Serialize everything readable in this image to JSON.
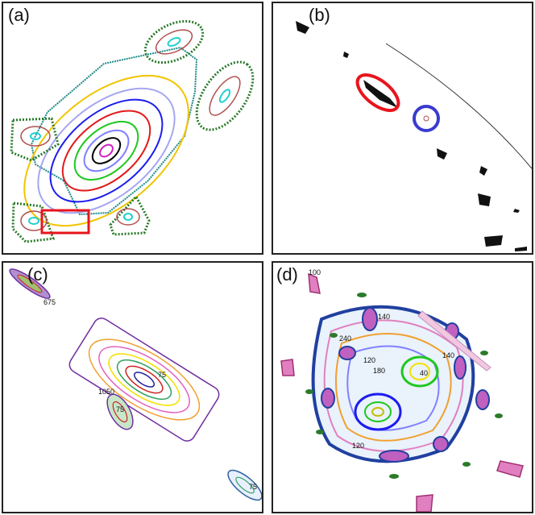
{
  "panels": [
    {
      "label": "(a)"
    },
    {
      "label": "(b)"
    },
    {
      "label": "(c)",
      "annotations": [
        "675",
        "75",
        "1050",
        "75",
        "75"
      ]
    },
    {
      "label": "(d)",
      "annotations": [
        "100",
        "140",
        "240",
        "140",
        "120",
        "180",
        "40",
        "120"
      ]
    }
  ],
  "colors": {
    "highlight_box": "#e8141c",
    "highlight_ellipse_red": "#e8141c",
    "highlight_ellipse_blue": "#3a3ad0",
    "orbits": [
      "#1f8a8a",
      "#f2c400",
      "#a6a6f2",
      "#1c1cf0",
      "#e01a1a",
      "#1ec81e",
      "#8080ff",
      "#000000",
      "#d020c0"
    ],
    "islands_outer": "#2a7a2a",
    "islands_mid": "#b05050",
    "islands_inner": "#20d0d0"
  }
}
